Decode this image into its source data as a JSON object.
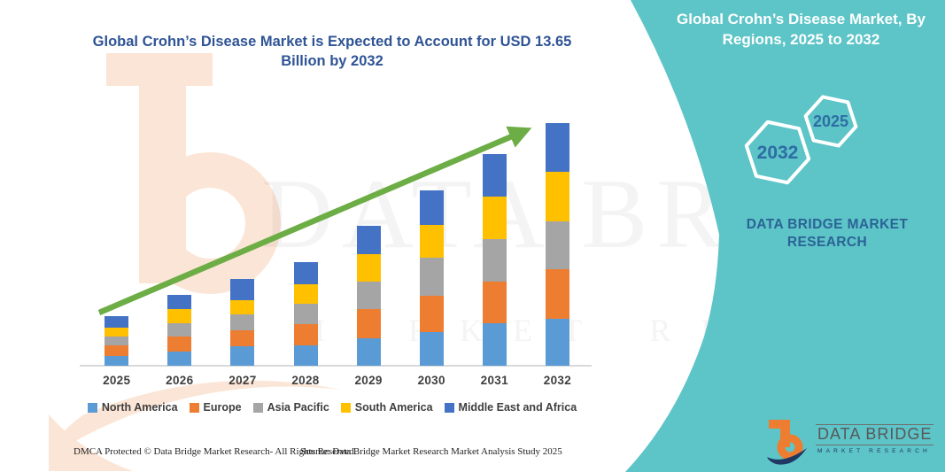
{
  "main_title": "Global Crohn’s Disease Market is Expected to Account for USD 13.65 Billion by 2032",
  "right_panel": {
    "heading": "Global Crohn’s Disease Market, By Regions, 2025 to 2032",
    "hexagon_large_label": "2032",
    "hexagon_small_label": "2025",
    "brand_line1": "DATA BRIDGE MARKET",
    "brand_line2": "RESEARCH"
  },
  "watermark": {
    "line1": "DATA BRIDGE",
    "line2": "MARKET RESEARCH"
  },
  "logo": {
    "title": "DATA BRIDGE",
    "subtitle": "MARKET RESEARCH"
  },
  "footer": {
    "dmca": "DMCA Protected © Data Bridge Market Research-  All Rights Reserved.",
    "source": "Source: Data Bridge Market Research  Market Analysis Study 2025"
  },
  "colors": {
    "teal": "#5DC4C7",
    "title_blue": "#2F5496",
    "heading_white": "#FFFFFF",
    "hex_label": "#2E6DA4",
    "brand_blue": "#2B6396",
    "axis_text": "#3F3F3F",
    "axis_line": "#D9D9D9",
    "arrow_green": "#6CAD45",
    "footer_text": "#1F1F1F",
    "logo_gray": "#58595B",
    "logo_navy": "#1F3864",
    "logo_orange": "#ED7D31",
    "watermark_peach": "#FBE5D6",
    "watermark_text": "rgba(70,70,70,0.06)"
  },
  "chart_data": {
    "type": "bar",
    "stacked": true,
    "title": "Global Crohn’s Disease Market is Expected to Account for USD 13.65 Billion by 2032",
    "unit": "USD Billion",
    "total_2032_usd_billion": 13.65,
    "values_estimated": true,
    "grid": false,
    "legend_position": "bottom",
    "ylim": [
      0,
      14
    ],
    "categories": [
      "2025",
      "2026",
      "2027",
      "2028",
      "2029",
      "2030",
      "2031",
      "2032"
    ],
    "series": [
      {
        "name": "North America",
        "color": "#5B9BD5",
        "values": [
          0.55,
          0.8,
          1.1,
          1.16,
          1.56,
          1.89,
          2.37,
          2.64
        ]
      },
      {
        "name": "Europe",
        "color": "#ED7D31",
        "values": [
          0.58,
          0.83,
          0.9,
          1.16,
          1.64,
          2.06,
          2.38,
          2.79
        ]
      },
      {
        "name": "Asia Pacific",
        "color": "#A5A5A5",
        "values": [
          0.51,
          0.76,
          0.88,
          1.16,
          1.55,
          2.12,
          2.37,
          2.69
        ]
      },
      {
        "name": "South America",
        "color": "#FFC000",
        "values": [
          0.53,
          0.78,
          0.82,
          1.1,
          1.53,
          1.87,
          2.38,
          2.79
        ]
      },
      {
        "name": "Middle East and Africa",
        "color": "#4472C4",
        "values": [
          0.62,
          0.79,
          1.2,
          1.25,
          1.59,
          1.94,
          2.4,
          2.74
        ]
      }
    ],
    "estimated_totals": [
      2.79,
      3.96,
      4.9,
      5.83,
      7.87,
      9.88,
      11.9,
      13.65
    ],
    "trend_arrow": "upward diagonal arrow from 2025 bar to 2032 bar"
  }
}
